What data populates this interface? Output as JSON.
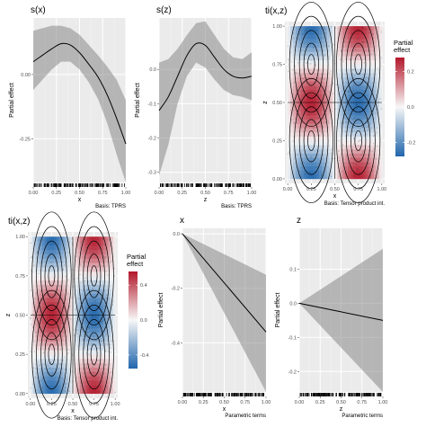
{
  "chart_data": [
    {
      "id": "sx",
      "type": "line",
      "title": "s(x)",
      "xlabel": "x",
      "ylabel": "Partial effect",
      "caption": "Basis: TPRS",
      "xlim": [
        0,
        1
      ],
      "ylim": [
        -0.42,
        0.22
      ],
      "xticks": [
        "0.00",
        "0.25",
        "0.50",
        "0.75",
        "1.00"
      ],
      "yticks": [
        {
          "v": 0.0,
          "label": "0.00"
        },
        {
          "v": -0.25,
          "label": "-0.25"
        }
      ],
      "x": [
        0.0,
        0.1,
        0.2,
        0.3,
        0.4,
        0.5,
        0.6,
        0.7,
        0.8,
        0.9,
        1.0
      ],
      "y": [
        0.05,
        0.075,
        0.1,
        0.12,
        0.115,
        0.085,
        0.04,
        -0.01,
        -0.08,
        -0.17,
        -0.27
      ],
      "upper": [
        0.17,
        0.18,
        0.19,
        0.19,
        0.18,
        0.155,
        0.115,
        0.075,
        0.03,
        -0.02,
        -0.1
      ],
      "lower": [
        -0.06,
        -0.02,
        0.02,
        0.05,
        0.05,
        0.02,
        -0.03,
        -0.095,
        -0.19,
        -0.31,
        -0.42
      ]
    },
    {
      "id": "sz",
      "type": "line",
      "title": "s(z)",
      "xlabel": "z",
      "ylabel": "Partial effect",
      "caption": "Basis: TPRS",
      "xlim": [
        0,
        1
      ],
      "ylim": [
        -0.33,
        0.15
      ],
      "xticks": [
        "0.00",
        "0.25",
        "0.50",
        "0.75",
        "1.00"
      ],
      "yticks": [
        {
          "v": 0.0,
          "label": "0.0"
        },
        {
          "v": -0.1,
          "label": "-0.1"
        },
        {
          "v": -0.2,
          "label": "-0.2"
        },
        {
          "v": -0.3,
          "label": "-0.3"
        }
      ],
      "x": [
        0.0,
        0.1,
        0.2,
        0.3,
        0.4,
        0.5,
        0.6,
        0.7,
        0.8,
        0.9,
        1.0
      ],
      "y": [
        -0.12,
        -0.08,
        -0.02,
        0.04,
        0.075,
        0.07,
        0.035,
        0.0,
        -0.02,
        -0.025,
        -0.02
      ],
      "upper": [
        0.02,
        0.03,
        0.06,
        0.1,
        0.135,
        0.14,
        0.1,
        0.06,
        0.035,
        0.03,
        0.05
      ],
      "lower": [
        -0.31,
        -0.22,
        -0.1,
        -0.02,
        0.02,
        0.005,
        -0.03,
        -0.06,
        -0.075,
        -0.08,
        -0.09
      ]
    },
    {
      "id": "tixz1",
      "type": "heatmap",
      "title": "ti(x,z)",
      "xlabel": "x",
      "ylabel": "z",
      "caption": "Basis: Tensor product int.",
      "legend_title": "Partial\neffect",
      "legend_ticks": [
        "0.2",
        "0.0",
        "-0.2"
      ],
      "xticks": [
        "0.00",
        "0.25",
        "0.50",
        "0.75",
        "1.00"
      ],
      "yticks": [
        "0.00",
        "0.25",
        "0.50",
        "0.75",
        "1.00"
      ],
      "colors": {
        "high": "#b2182b",
        "mid": "#f7f7f7",
        "low": "#2166ac"
      }
    },
    {
      "id": "tixz2",
      "type": "heatmap",
      "title": "ti(x,z)",
      "xlabel": "x",
      "ylabel": "z",
      "caption": "Basis: Tensor product int.",
      "legend_title": "Partial\neffect",
      "legend_ticks": [
        "0.4",
        "0.0",
        "-0.4"
      ],
      "xticks": [
        "0.00",
        "0.25",
        "0.50",
        "0.75",
        "1.00"
      ],
      "yticks": [
        "0.00",
        "0.25",
        "0.50",
        "0.75",
        "1.00"
      ],
      "colors": {
        "high": "#b2182b",
        "mid": "#f7f7f7",
        "low": "#2166ac"
      }
    },
    {
      "id": "px",
      "type": "line",
      "title": "x",
      "xlabel": "x",
      "ylabel": "Partial effect",
      "caption": "Parametric terms",
      "xlim": [
        0,
        1
      ],
      "ylim": [
        -0.58,
        0.02
      ],
      "xticks": [
        "0.00",
        "0.25",
        "0.50",
        "0.75",
        "1.00"
      ],
      "yticks": [
        {
          "v": 0.0,
          "label": "0.0"
        },
        {
          "v": -0.2,
          "label": "-0.2"
        },
        {
          "v": -0.4,
          "label": "-0.4"
        }
      ],
      "x": [
        0,
        1
      ],
      "y": [
        0.0,
        -0.36
      ],
      "upper": [
        0.0,
        -0.15
      ],
      "lower": [
        0.0,
        -0.58
      ]
    },
    {
      "id": "pz",
      "type": "line",
      "title": "z",
      "xlabel": "z",
      "ylabel": "Partial effect",
      "caption": "Parametric terms",
      "xlim": [
        0,
        1
      ],
      "ylim": [
        -0.26,
        0.22
      ],
      "xticks": [
        "0.00",
        "0.25",
        "0.50",
        "0.75",
        "1.00"
      ],
      "yticks": [
        {
          "v": 0.1,
          "label": "0.1"
        },
        {
          "v": 0.0,
          "label": "0.0"
        },
        {
          "v": -0.1,
          "label": "-0.1"
        },
        {
          "v": -0.2,
          "label": "-0.2"
        }
      ],
      "x": [
        0,
        1
      ],
      "y": [
        0.0,
        -0.05
      ],
      "upper": [
        0.0,
        0.16
      ],
      "lower": [
        0.0,
        -0.26
      ]
    }
  ]
}
